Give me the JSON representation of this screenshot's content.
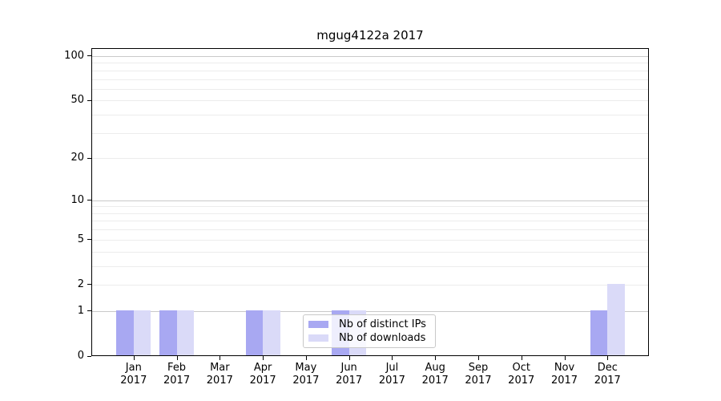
{
  "chart_data": {
    "type": "bar",
    "title": "mgug4122a 2017",
    "categories": [
      "Jan",
      "Feb",
      "Mar",
      "Apr",
      "May",
      "Jun",
      "Jul",
      "Aug",
      "Sep",
      "Oct",
      "Nov",
      "Dec"
    ],
    "category_year": "2017",
    "series": [
      {
        "name": "Nb of distinct IPs",
        "color": "#a8a8f2",
        "values": [
          1,
          1,
          0,
          1,
          0,
          1,
          0,
          0,
          0,
          0,
          0,
          1
        ]
      },
      {
        "name": "Nb of downloads",
        "color": "#dadaf8",
        "values": [
          1,
          1,
          0,
          1,
          0,
          1,
          0,
          0,
          0,
          0,
          0,
          2
        ]
      }
    ],
    "y_axis": {
      "scale": "log10(1+x)",
      "ticks": [
        0,
        1,
        2,
        5,
        10,
        20,
        50,
        100
      ],
      "major_gridlines": [
        1,
        10,
        100
      ],
      "minor_gridlines": [
        2,
        3,
        4,
        5,
        6,
        7,
        8,
        9,
        20,
        30,
        40,
        50,
        60,
        70,
        80,
        90
      ],
      "ylim_top_approx": 120
    },
    "xlabel": "",
    "ylabel": "",
    "grid": true,
    "legend_position": "lower-center-inside"
  }
}
